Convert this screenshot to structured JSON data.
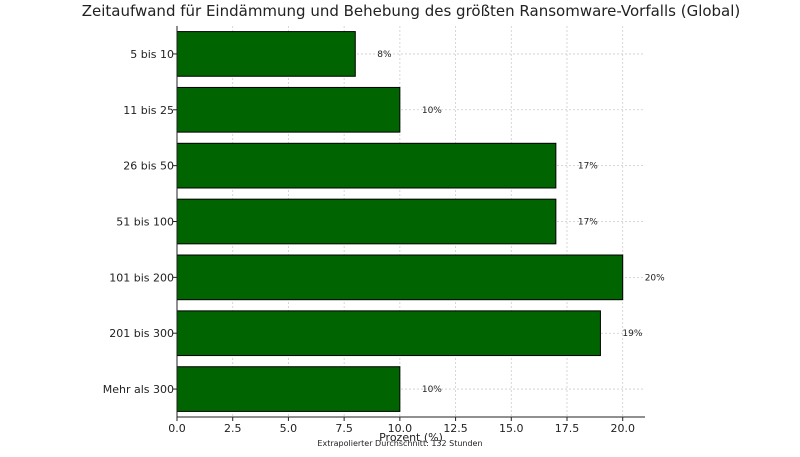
{
  "chart_data": {
    "type": "bar",
    "orientation": "horizontal",
    "title": "Zeitaufwand für Eindämmung und Behebung des größten Ransomware-Vorfalls (Global)",
    "xlabel": "Prozent (%)",
    "ylabel": "",
    "categories": [
      "5 bis 10",
      "11 bis 25",
      "26 bis 50",
      "51 bis 100",
      "101 bis 200",
      "201 bis 300",
      "Mehr als 300"
    ],
    "values": [
      8,
      10,
      17,
      17,
      20,
      19,
      10
    ],
    "value_labels": [
      "8%",
      "10%",
      "17%",
      "17%",
      "20%",
      "19%",
      "10%"
    ],
    "xlim": [
      0,
      21
    ],
    "xticks": [
      0,
      2.5,
      5,
      7.5,
      10,
      12.5,
      15,
      17.5,
      20
    ],
    "xtick_labels": [
      "0.0",
      "2.5",
      "5.0",
      "7.5",
      "10.0",
      "12.5",
      "15.0",
      "17.5",
      "20.0"
    ],
    "grid": true,
    "bar_color": "#006400",
    "footnote": "Extrapolierter Durchschnitt: 132 Stunden"
  }
}
